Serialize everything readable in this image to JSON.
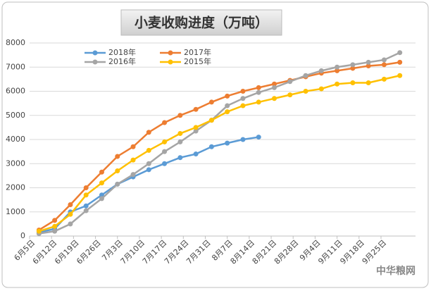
{
  "chart_data": {
    "type": "line",
    "title": "小麦收购进度（万吨）",
    "x": [
      3,
      8,
      13,
      18,
      23,
      28,
      33,
      38,
      43,
      48,
      53,
      58,
      63,
      68,
      73,
      78,
      83,
      88,
      93,
      98,
      103,
      108,
      113,
      118
    ],
    "xlim": [
      0,
      123
    ],
    "xticks": [
      {
        "value": 0,
        "label": "6月5日"
      },
      {
        "value": 7,
        "label": "6月12日"
      },
      {
        "value": 14,
        "label": "6月19日"
      },
      {
        "value": 21,
        "label": "6月26日"
      },
      {
        "value": 28,
        "label": "7月3日"
      },
      {
        "value": 35,
        "label": "7月10日"
      },
      {
        "value": 42,
        "label": "7月17日"
      },
      {
        "value": 49,
        "label": "7月24日"
      },
      {
        "value": 56,
        "label": "7月31日"
      },
      {
        "value": 63,
        "label": "8月7日"
      },
      {
        "value": 70,
        "label": "8月14日"
      },
      {
        "value": 77,
        "label": "8月21日"
      },
      {
        "value": 84,
        "label": "8月28日"
      },
      {
        "value": 91,
        "label": "9月4日"
      },
      {
        "value": 98,
        "label": "9月11日"
      },
      {
        "value": 105,
        "label": "9月18日"
      },
      {
        "value": 112,
        "label": "9月25日"
      }
    ],
    "ylim": [
      0,
      8000
    ],
    "yticks": [
      0,
      1000,
      2000,
      3000,
      4000,
      5000,
      6000,
      7000,
      8000
    ],
    "grid": true,
    "series": [
      {
        "name": "2018年",
        "color": "#5b9bd5",
        "values": [
          150,
          300,
          1000,
          1250,
          1700,
          2150,
          2450,
          2750,
          3000,
          3250,
          3400,
          3700,
          3850,
          4000,
          4100,
          null,
          null,
          null,
          null,
          null,
          null,
          null,
          null,
          null
        ]
      },
      {
        "name": "2017年",
        "color": "#ed7d31",
        "values": [
          250,
          650,
          1300,
          2000,
          2650,
          3300,
          3700,
          4300,
          4700,
          5000,
          5250,
          5550,
          5800,
          6000,
          6150,
          6300,
          6450,
          6600,
          6750,
          6850,
          6950,
          7050,
          7100,
          7200
        ]
      },
      {
        "name": "2016年",
        "color": "#a5a5a5",
        "values": [
          100,
          200,
          500,
          1050,
          1550,
          2150,
          2550,
          3000,
          3500,
          3900,
          4350,
          4800,
          5400,
          5700,
          5950,
          6150,
          6400,
          6650,
          6850,
          7000,
          7100,
          7200,
          7300,
          7600
        ]
      },
      {
        "name": "2015年",
        "color": "#ffc000",
        "values": [
          200,
          400,
          900,
          1700,
          2200,
          2700,
          3150,
          3550,
          3900,
          4250,
          4500,
          4800,
          5150,
          5400,
          5550,
          5700,
          5850,
          6000,
          6100,
          6300,
          6350,
          6350,
          6500,
          6650
        ]
      }
    ],
    "watermark": "中华粮网"
  }
}
